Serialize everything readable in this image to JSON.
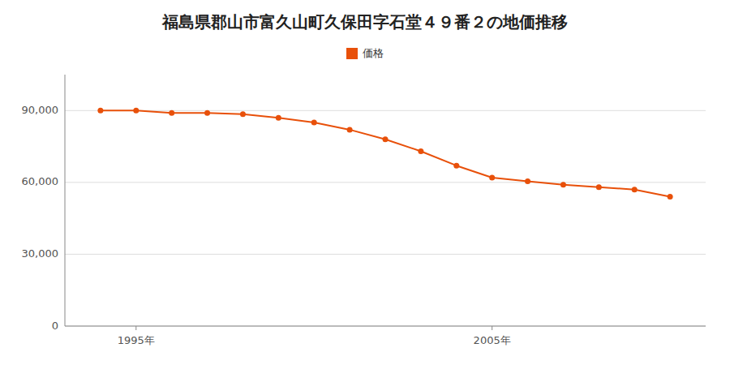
{
  "chart_data": {
    "type": "line",
    "title": "福島県郡山市富久山町久保田字石堂４９番２の地価推移",
    "x": [
      1994,
      1995,
      1996,
      1997,
      1998,
      1999,
      2000,
      2001,
      2002,
      2003,
      2004,
      2005,
      2006,
      2007,
      2008,
      2009,
      2010
    ],
    "series": [
      {
        "name": "価格",
        "color": "#E8500A",
        "marker": "circle",
        "values": [
          90000,
          90000,
          89000,
          89000,
          88500,
          87000,
          85000,
          82000,
          78000,
          73000,
          67000,
          62000,
          60500,
          59000,
          58000,
          57000,
          54000
        ]
      }
    ],
    "xlim": [
      1993,
      2011
    ],
    "xticks": [
      {
        "value": 1995,
        "label": "1995年"
      },
      {
        "value": 2005,
        "label": "2005年"
      }
    ],
    "ylim": [
      0,
      105000
    ],
    "yticks": [
      0,
      {
        "value": 30000,
        "label": "30,000"
      },
      {
        "value": 60000,
        "label": "60,000"
      },
      {
        "value": 90000,
        "label": "90,000"
      }
    ],
    "grid": true,
    "legend": "top"
  }
}
